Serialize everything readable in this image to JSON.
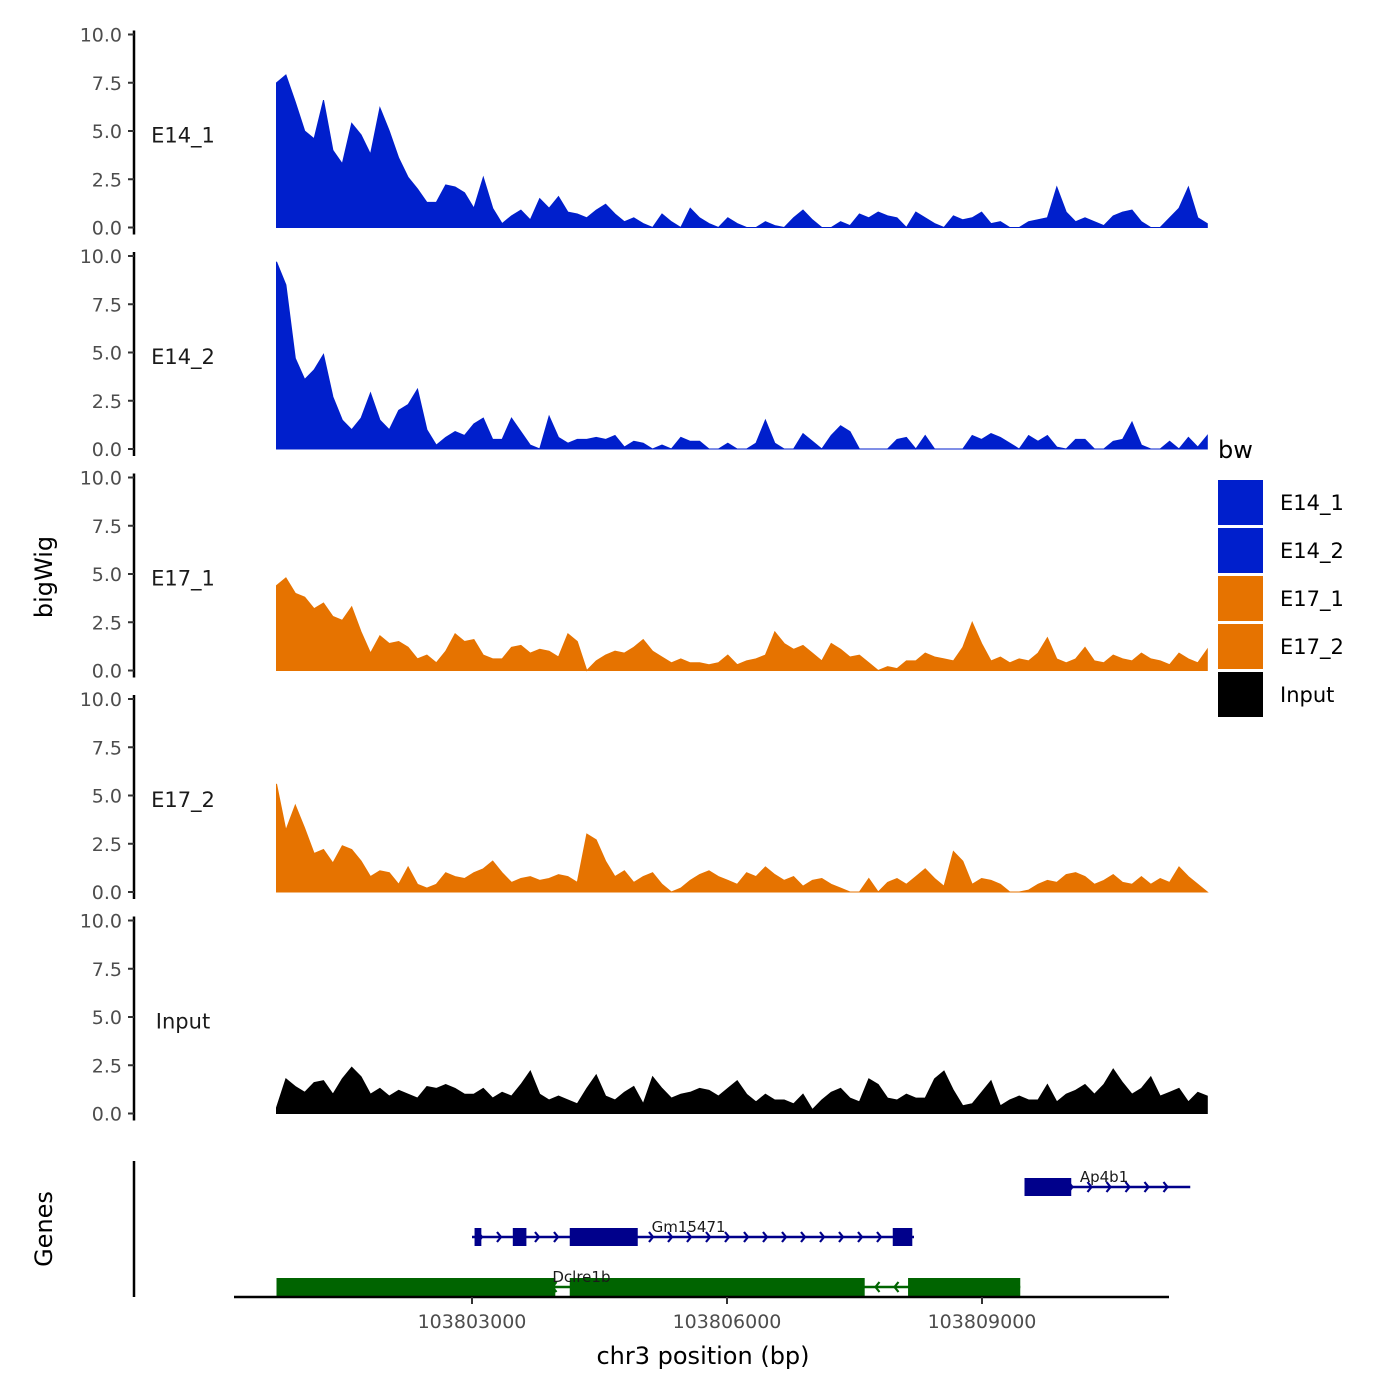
{
  "chart_data": {
    "type": "area",
    "ylabel": "bigWig",
    "xlabel": "chr3 position (bp)",
    "xlim": [
      103800200,
      103811200
    ],
    "ylim": [
      0,
      10
    ],
    "ytick_labels": [
      "0.0",
      "2.5",
      "5.0",
      "7.5",
      "10.0"
    ],
    "yticks": [
      0,
      2.5,
      5,
      7.5,
      10
    ],
    "xticks": [
      103803000,
      103806000,
      103809000
    ],
    "xtick_labels": [
      "103803000",
      "103806000",
      "103809000"
    ],
    "track_start": 103800700,
    "track_end": 103811650,
    "series": [
      {
        "name": "E14_1",
        "color": "#001fcc",
        "values": [
          7.5,
          7.9,
          6.5,
          5.0,
          4.6,
          6.6,
          4.0,
          3.3,
          5.4,
          4.8,
          3.8,
          6.2,
          5.0,
          3.6,
          2.6,
          2.0,
          1.3,
          1.3,
          2.2,
          2.1,
          1.8,
          1.0,
          2.6,
          1.0,
          0.2,
          0.6,
          0.9,
          0.4,
          1.5,
          1.0,
          1.6,
          0.8,
          0.7,
          0.5,
          0.9,
          1.2,
          0.7,
          0.3,
          0.5,
          0.2,
          0.0,
          0.7,
          0.3,
          0.0,
          1.0,
          0.5,
          0.2,
          0.0,
          0.5,
          0.2,
          0.0,
          0.0,
          0.3,
          0.1,
          0.0,
          0.5,
          0.9,
          0.4,
          0.0,
          0.0,
          0.3,
          0.1,
          0.7,
          0.5,
          0.8,
          0.6,
          0.5,
          0.0,
          0.8,
          0.5,
          0.2,
          0.0,
          0.6,
          0.4,
          0.5,
          0.8,
          0.2,
          0.3,
          0.0,
          0.0,
          0.3,
          0.4,
          0.5,
          2.1,
          0.8,
          0.3,
          0.5,
          0.3,
          0.1,
          0.6,
          0.8,
          0.9,
          0.3,
          0.0,
          0.0,
          0.5,
          1.0,
          2.1,
          0.5,
          0.2
        ]
      },
      {
        "name": "E14_2",
        "color": "#001fcc",
        "values": [
          9.7,
          8.5,
          4.7,
          3.6,
          4.1,
          4.9,
          2.7,
          1.5,
          1.0,
          1.6,
          2.9,
          1.5,
          1.0,
          2.0,
          2.3,
          3.1,
          1.0,
          0.2,
          0.6,
          0.9,
          0.7,
          1.3,
          1.6,
          0.5,
          0.5,
          1.6,
          0.9,
          0.2,
          0.0,
          1.7,
          0.6,
          0.3,
          0.5,
          0.5,
          0.6,
          0.5,
          0.7,
          0.1,
          0.4,
          0.3,
          0.0,
          0.2,
          0.0,
          0.6,
          0.4,
          0.4,
          0.0,
          0.0,
          0.3,
          0.0,
          0.0,
          0.3,
          1.5,
          0.3,
          0.0,
          0.0,
          0.8,
          0.4,
          0.0,
          0.7,
          1.2,
          0.9,
          0.0,
          0.0,
          0.0,
          0.0,
          0.5,
          0.6,
          0.0,
          0.7,
          0.0,
          0.0,
          0.0,
          0.0,
          0.7,
          0.5,
          0.8,
          0.6,
          0.3,
          0.0,
          0.7,
          0.4,
          0.7,
          0.1,
          0.0,
          0.5,
          0.5,
          0.0,
          0.0,
          0.4,
          0.5,
          1.4,
          0.2,
          0.0,
          0.0,
          0.4,
          0.0,
          0.6,
          0.1,
          0.7
        ]
      },
      {
        "name": "E17_1",
        "color": "#e67300",
        "values": [
          4.4,
          4.8,
          4.0,
          3.8,
          3.2,
          3.5,
          2.8,
          2.6,
          3.3,
          2.0,
          0.9,
          1.8,
          1.4,
          1.5,
          1.2,
          0.6,
          0.8,
          0.4,
          1.0,
          1.9,
          1.5,
          1.6,
          0.8,
          0.6,
          0.6,
          1.2,
          1.3,
          0.9,
          1.1,
          1.0,
          0.7,
          1.9,
          1.5,
          0.0,
          0.5,
          0.8,
          1.0,
          0.9,
          1.2,
          1.6,
          1.0,
          0.7,
          0.4,
          0.6,
          0.4,
          0.4,
          0.3,
          0.4,
          0.8,
          0.3,
          0.5,
          0.6,
          0.8,
          2.0,
          1.4,
          1.1,
          1.3,
          0.9,
          0.5,
          1.4,
          1.1,
          0.7,
          0.8,
          0.4,
          0.0,
          0.2,
          0.1,
          0.5,
          0.5,
          0.9,
          0.7,
          0.6,
          0.5,
          1.2,
          2.5,
          1.4,
          0.5,
          0.7,
          0.4,
          0.6,
          0.5,
          0.9,
          1.7,
          0.6,
          0.4,
          0.6,
          1.2,
          0.5,
          0.4,
          0.8,
          0.6,
          0.5,
          0.9,
          0.6,
          0.5,
          0.3,
          0.9,
          0.6,
          0.4,
          1.1
        ]
      },
      {
        "name": "E17_2",
        "color": "#e67300",
        "values": [
          5.6,
          3.2,
          4.5,
          3.3,
          2.0,
          2.2,
          1.5,
          2.4,
          2.2,
          1.6,
          0.8,
          1.1,
          1.0,
          0.4,
          1.3,
          0.4,
          0.2,
          0.4,
          1.0,
          0.8,
          0.7,
          1.0,
          1.2,
          1.6,
          1.0,
          0.5,
          0.7,
          0.8,
          0.6,
          0.7,
          0.9,
          0.8,
          0.5,
          3.0,
          2.7,
          1.6,
          0.8,
          1.1,
          0.5,
          0.8,
          1.0,
          0.4,
          0.0,
          0.2,
          0.6,
          0.9,
          1.1,
          0.8,
          0.6,
          0.4,
          1.0,
          0.8,
          1.3,
          0.9,
          0.6,
          0.8,
          0.3,
          0.6,
          0.7,
          0.4,
          0.2,
          0.0,
          0.0,
          0.7,
          0.0,
          0.5,
          0.7,
          0.4,
          0.8,
          1.2,
          0.7,
          0.3,
          2.1,
          1.6,
          0.4,
          0.7,
          0.6,
          0.4,
          0.0,
          0.0,
          0.1,
          0.4,
          0.6,
          0.5,
          0.9,
          1.0,
          0.8,
          0.4,
          0.6,
          0.9,
          0.5,
          0.4,
          0.8,
          0.4,
          0.7,
          0.5,
          1.3,
          0.8,
          0.4,
          0.0
        ]
      },
      {
        "name": "Input",
        "color": "#000000",
        "values": [
          0.3,
          1.8,
          1.4,
          1.1,
          1.6,
          1.7,
          1.0,
          1.8,
          2.4,
          1.9,
          1.0,
          1.3,
          0.9,
          1.2,
          1.0,
          0.8,
          1.4,
          1.3,
          1.5,
          1.3,
          1.0,
          1.0,
          1.3,
          0.8,
          1.1,
          0.9,
          1.5,
          2.2,
          1.0,
          0.7,
          0.9,
          0.7,
          0.5,
          1.3,
          2.0,
          0.9,
          0.7,
          1.1,
          1.4,
          0.5,
          1.9,
          1.3,
          0.8,
          1.0,
          1.1,
          1.3,
          1.2,
          0.9,
          1.3,
          1.7,
          1.0,
          0.6,
          1.0,
          0.7,
          0.7,
          0.5,
          1.0,
          0.2,
          0.7,
          1.1,
          1.3,
          0.8,
          0.6,
          1.8,
          1.5,
          0.8,
          0.7,
          1.0,
          0.8,
          0.8,
          1.8,
          2.2,
          1.2,
          0.4,
          0.5,
          1.1,
          1.7,
          0.4,
          0.7,
          0.9,
          0.7,
          0.7,
          1.5,
          0.6,
          1.0,
          1.2,
          1.5,
          1.0,
          1.5,
          2.3,
          1.6,
          1.0,
          1.3,
          1.9,
          0.9,
          1.1,
          1.3,
          0.6,
          1.1,
          0.9
        ]
      }
    ],
    "legend": {
      "title": "bw",
      "position": "right",
      "entries": [
        {
          "label": "E14_1",
          "color": "#001fcc"
        },
        {
          "label": "E14_2",
          "color": "#001fcc"
        },
        {
          "label": "E17_1",
          "color": "#e67300"
        },
        {
          "label": "E17_2",
          "color": "#e67300"
        },
        {
          "label": "Input",
          "color": "#000000"
        }
      ]
    },
    "genes_panel": {
      "ylabel": "Genes",
      "genes": [
        {
          "name": "Ap4b1",
          "strand": "+",
          "color": "#00008b",
          "row": 0,
          "start": 103809500,
          "end": 103811450,
          "exons": [
            [
              103809500,
              103810050
            ]
          ]
        },
        {
          "name": "Gm15471",
          "strand": "+",
          "color": "#00008b",
          "row": 1,
          "start": 103803000,
          "end": 103808200,
          "exons": [
            [
              103803030,
              103803110
            ],
            [
              103803480,
              103803640
            ],
            [
              103804150,
              103804950
            ],
            [
              103807950,
              103808180
            ]
          ]
        },
        {
          "name": "Dclre1b",
          "strand": "-",
          "color": "#006400",
          "row": 2,
          "start": 103800700,
          "end": 103809450,
          "exons": [
            [
              103800700,
              103803980
            ],
            [
              103804150,
              103807620
            ],
            [
              103808130,
              103808900
            ],
            [
              103808900,
              103809450
            ]
          ]
        }
      ]
    }
  }
}
